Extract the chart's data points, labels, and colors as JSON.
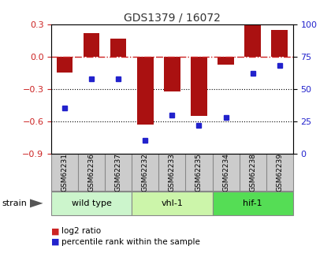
{
  "title": "GDS1379 / 16072",
  "samples": [
    "GSM62231",
    "GSM62236",
    "GSM62237",
    "GSM62232",
    "GSM62233",
    "GSM62235",
    "GSM62234",
    "GSM62238",
    "GSM62239"
  ],
  "log2_ratio": [
    -0.15,
    0.22,
    0.17,
    -0.63,
    -0.32,
    -0.55,
    -0.07,
    0.29,
    0.25
  ],
  "percentile_rank": [
    35,
    58,
    58,
    10,
    30,
    22,
    28,
    62,
    68
  ],
  "ylim_left": [
    -0.9,
    0.3
  ],
  "ylim_right": [
    0,
    100
  ],
  "yticks_left": [
    0.3,
    0.0,
    -0.3,
    -0.6,
    -0.9
  ],
  "yticks_right": [
    100,
    75,
    50,
    25,
    0
  ],
  "groups": [
    {
      "label": "wild type",
      "indices": [
        0,
        1,
        2
      ],
      "color": "#ccf5cc"
    },
    {
      "label": "vhl-1",
      "indices": [
        3,
        4,
        5
      ],
      "color": "#ccf5aa"
    },
    {
      "label": "hif-1",
      "indices": [
        6,
        7,
        8
      ],
      "color": "#55dd55"
    }
  ],
  "bar_color": "#aa1111",
  "dot_color": "#2222cc",
  "zeroline_color": "#cc2222",
  "grid_color": "#000000",
  "bg_color": "#ffffff",
  "label_bg_color": "#cccccc",
  "legend_bar_color": "#cc2222",
  "legend_dot_color": "#2222cc",
  "strain_label": "strain",
  "legend1": "log2 ratio",
  "legend2": "percentile rank within the sample"
}
